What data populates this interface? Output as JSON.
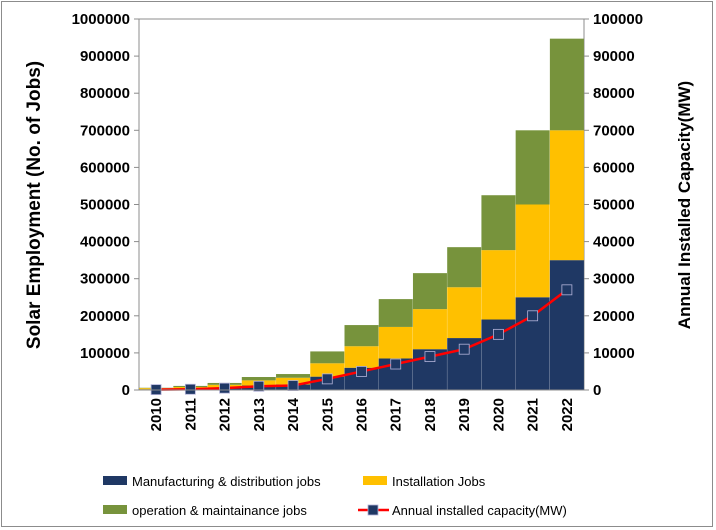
{
  "chart_data": {
    "type": "bar",
    "stacked": true,
    "categories": [
      "2010",
      "2011",
      "2012",
      "2013",
      "2014",
      "2015",
      "2016",
      "2017",
      "2018",
      "2019",
      "2020",
      "2021",
      "2022"
    ],
    "series": [
      {
        "name": "Manufacturing & distribution jobs",
        "kind": "bar",
        "axis": "left",
        "color": "#1f3864",
        "values": [
          2000,
          3000,
          6000,
          12000,
          15000,
          36000,
          60000,
          85000,
          110000,
          140000,
          190000,
          250000,
          350000
        ]
      },
      {
        "name": "Installation Jobs",
        "kind": "bar",
        "axis": "left",
        "color": "#ffc000",
        "values": [
          3000,
          5000,
          8000,
          14000,
          18000,
          36000,
          58000,
          85000,
          108000,
          137000,
          187000,
          250000,
          350000
        ]
      },
      {
        "name": "operation & maintainance jobs",
        "kind": "bar",
        "axis": "left",
        "color": "#77933c",
        "values": [
          1000,
          3000,
          5000,
          9000,
          10000,
          32000,
          57000,
          75000,
          97000,
          108000,
          148000,
          200000,
          247000
        ]
      },
      {
        "name": "Annual installed capacity(MW)",
        "kind": "line",
        "axis": "right",
        "color": "#ff0000",
        "marker_color": "#1f3864",
        "values": [
          100,
          200,
          500,
          1000,
          1200,
          3000,
          5000,
          7000,
          9000,
          11000,
          15000,
          20000,
          27000
        ]
      }
    ],
    "ylabel": "Solar Employment (No. of Jobs)",
    "y2label": "Annual Installed Capacity(MW)",
    "ylim": [
      0,
      1000000
    ],
    "y2lim": [
      0,
      100000
    ],
    "yticks": [
      "0",
      "100000",
      "200000",
      "300000",
      "400000",
      "500000",
      "600000",
      "700000",
      "800000",
      "900000",
      "1000000"
    ],
    "y2ticks": [
      "0",
      "10000",
      "20000",
      "30000",
      "40000",
      "50000",
      "60000",
      "70000",
      "80000",
      "90000",
      "100000"
    ],
    "grid": false,
    "legend_position": "bottom"
  }
}
